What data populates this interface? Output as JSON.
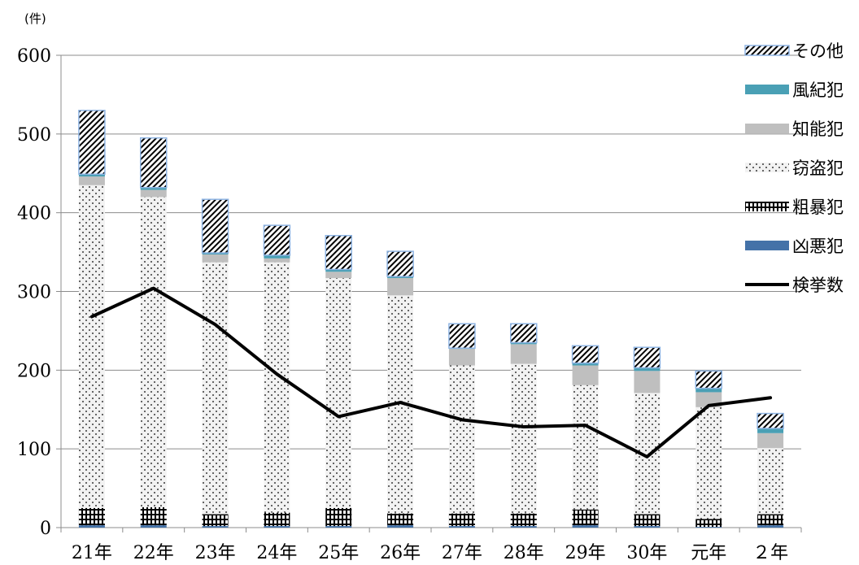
{
  "chart_data": {
    "type": "bar",
    "stacked": true,
    "title": "",
    "unit_label": "(件)",
    "xlabel": "",
    "ylabel": "",
    "ylim": [
      0,
      600
    ],
    "yticks": [
      0,
      100,
      200,
      300,
      400,
      500,
      600
    ],
    "grid": true,
    "legend_position": "right",
    "categories": [
      "21年",
      "22年",
      "23年",
      "24年",
      "25年",
      "26年",
      "27年",
      "28年",
      "29年",
      "30年",
      "元年",
      "２年"
    ],
    "series": [
      {
        "name": "凶悪犯",
        "kind": "bar",
        "color": "#4472a8",
        "values": [
          3,
          3,
          2,
          2,
          2,
          3,
          2,
          2,
          3,
          2,
          1,
          3
        ]
      },
      {
        "name": "粗暴犯",
        "kind": "bar",
        "color": "#000000",
        "values": [
          22,
          23,
          15,
          17,
          23,
          15,
          16,
          16,
          20,
          15,
          10,
          14
        ]
      },
      {
        "name": "窃盗犯",
        "kind": "bar",
        "color": "#f2f2f2",
        "values": [
          410,
          394,
          320,
          318,
          292,
          277,
          188,
          190,
          158,
          154,
          142,
          84
        ]
      },
      {
        "name": "知能犯",
        "kind": "bar",
        "color": "#bfbfbf",
        "values": [
          11,
          9,
          10,
          5,
          8,
          22,
          21,
          25,
          25,
          28,
          19,
          19
        ]
      },
      {
        "name": "風紀犯",
        "kind": "bar",
        "color": "#4aa0b5",
        "values": [
          3,
          3,
          2,
          4,
          3,
          2,
          1,
          2,
          3,
          4,
          5,
          6
        ]
      },
      {
        "name": "その他",
        "kind": "bar",
        "color": "#ffffff",
        "values": [
          81,
          63,
          68,
          38,
          43,
          32,
          31,
          24,
          22,
          26,
          22,
          19
        ]
      },
      {
        "name": "検挙数",
        "kind": "line",
        "color": "#000000",
        "values": [
          268,
          304,
          258,
          195,
          141,
          159,
          137,
          128,
          130,
          90,
          155,
          165
        ]
      }
    ]
  }
}
